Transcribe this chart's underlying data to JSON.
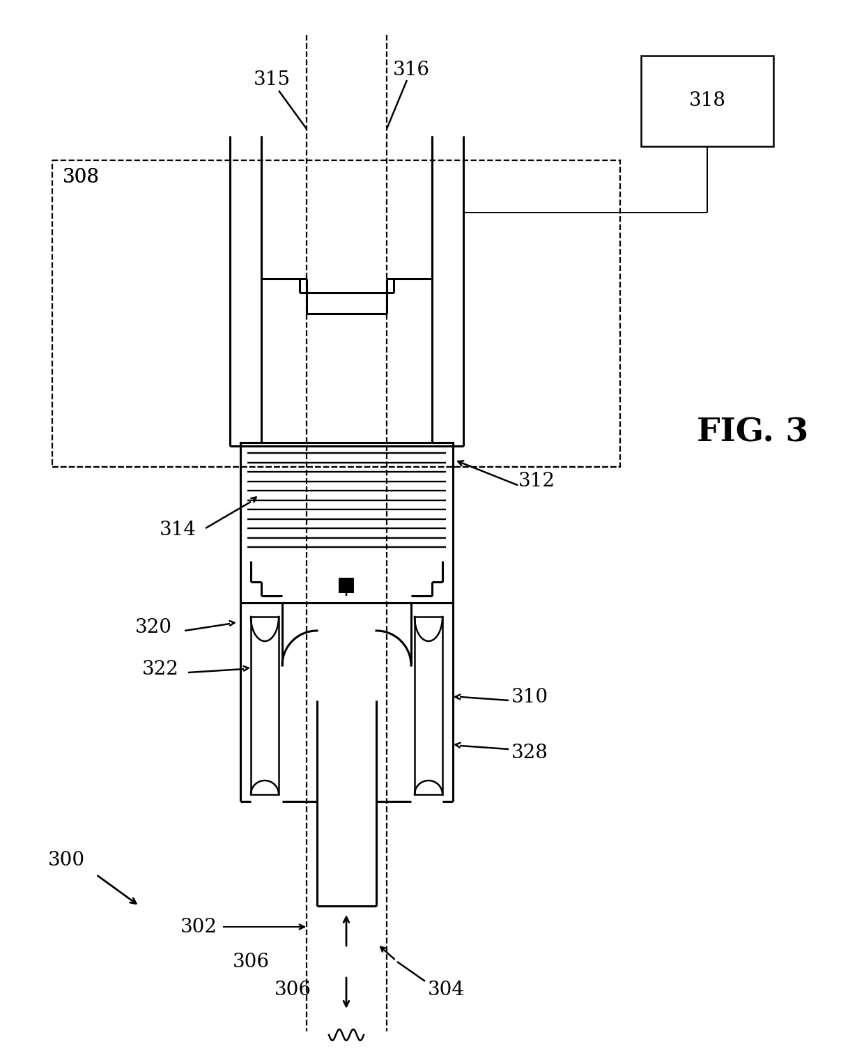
{
  "bg_color": "#ffffff",
  "fig_label": "FIG. 3",
  "lw_heavy": 2.2,
  "lw_med": 1.8,
  "lw_thin": 1.4,
  "lw_dash": 1.6,
  "fs_label": 20
}
